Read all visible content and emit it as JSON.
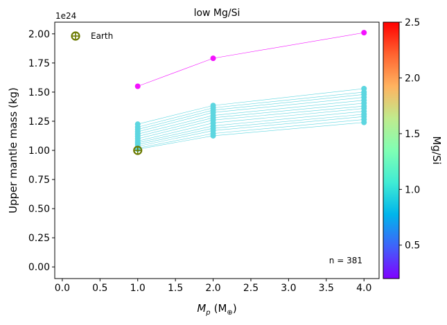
{
  "chart_data": {
    "type": "scatter",
    "title": "low Mg/Si",
    "xlabel_main": "M",
    "xlabel_sub": "p",
    "xlabel_unit_open": "(M",
    "xlabel_unit_sub": "⊕",
    "xlabel_unit_close": ")",
    "ylabel": "Upper mantle mass (kg)",
    "y_offset_label": "1e24",
    "xlim": [
      -0.1,
      4.2
    ],
    "ylim": [
      -0.1,
      2.1
    ],
    "x_ticks": [
      0.0,
      0.5,
      1.0,
      1.5,
      2.0,
      2.5,
      3.0,
      3.5,
      4.0
    ],
    "x_tick_labels": [
      "0.0",
      "0.5",
      "1.0",
      "1.5",
      "2.0",
      "2.5",
      "3.0",
      "3.5",
      "4.0"
    ],
    "y_ticks": [
      0.0,
      0.25,
      0.5,
      0.75,
      1.0,
      1.25,
      1.5,
      1.75,
      2.0
    ],
    "y_tick_labels": [
      "0.00",
      "0.25",
      "0.50",
      "0.75",
      "1.00",
      "1.25",
      "1.50",
      "1.75",
      "2.00"
    ],
    "annotation": "n = 381",
    "legend": {
      "label": "Earth",
      "marker": "circle-plus",
      "color": "#6b7a00",
      "placement": "top-left"
    },
    "earth_point": {
      "x": 1.0,
      "y": 1.0
    },
    "colorbar": {
      "label": "Mg/Si",
      "min": 0.2,
      "max": 2.5,
      "ticks": [
        0.5,
        1.0,
        1.5,
        2.0,
        2.5
      ],
      "tick_labels": [
        "0.5",
        "1.0",
        "1.5",
        "2.0",
        "2.5"
      ],
      "colormap": "rainbow"
    },
    "x": [
      1.0,
      2.0,
      4.0
    ],
    "series": [
      {
        "mgsi": 0.25,
        "values": [
          1.55,
          1.79,
          2.01
        ]
      },
      {
        "mgsi": 0.93,
        "values": [
          1.225,
          1.385,
          1.53
        ]
      },
      {
        "mgsi": 0.93,
        "values": [
          1.2,
          1.365,
          1.5
        ]
      },
      {
        "mgsi": 0.93,
        "values": [
          1.18,
          1.345,
          1.48
        ]
      },
      {
        "mgsi": 0.93,
        "values": [
          1.16,
          1.325,
          1.455
        ]
      },
      {
        "mgsi": 0.93,
        "values": [
          1.14,
          1.3,
          1.43
        ]
      },
      {
        "mgsi": 0.93,
        "values": [
          1.12,
          1.28,
          1.405
        ]
      },
      {
        "mgsi": 0.93,
        "values": [
          1.1,
          1.26,
          1.38
        ]
      },
      {
        "mgsi": 0.93,
        "values": [
          1.08,
          1.235,
          1.36
        ]
      },
      {
        "mgsi": 0.93,
        "values": [
          1.065,
          1.21,
          1.335
        ]
      },
      {
        "mgsi": 0.93,
        "values": [
          1.05,
          1.19,
          1.31
        ]
      },
      {
        "mgsi": 0.93,
        "values": [
          1.035,
          1.17,
          1.29
        ]
      },
      {
        "mgsi": 0.93,
        "values": [
          1.02,
          1.145,
          1.265
        ]
      },
      {
        "mgsi": 0.93,
        "values": [
          1.01,
          1.125,
          1.24
        ]
      }
    ]
  }
}
